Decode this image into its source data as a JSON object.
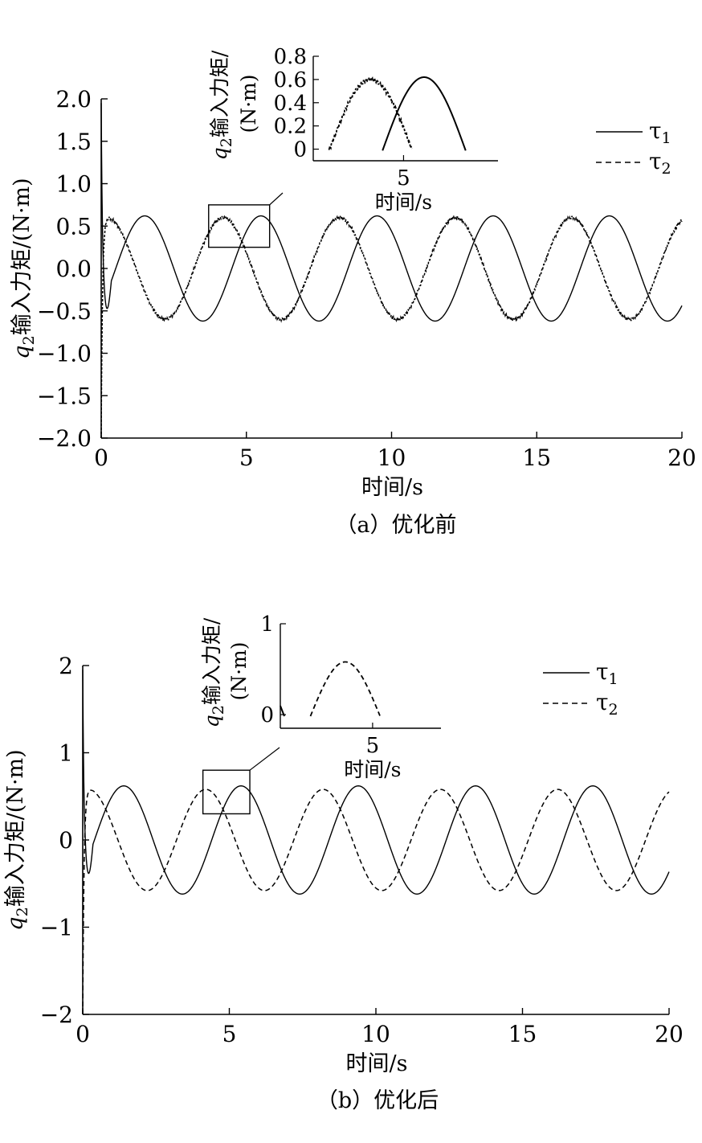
{
  "chart_data": [
    {
      "panel": "a",
      "type": "line",
      "caption": "（a）优化前",
      "xlabel": "时间/s",
      "ylabel": "q2输入力矩/(N·m)",
      "ylabel_var": "q",
      "ylabel_sub": "2",
      "ylabel_rest": "输入力矩/(N·m)",
      "xlim": [
        0,
        20
      ],
      "ylim": [
        -2.0,
        2.0
      ],
      "x_ticks": [
        "0",
        "5",
        "10",
        "15",
        "20"
      ],
      "y_ticks": [
        "2.0",
        "1.5",
        "1.0",
        "0.5",
        "0.0",
        "−0.5",
        "−1.0",
        "−1.5",
        "−2.0"
      ],
      "legend_position": "top-right",
      "series": [
        {
          "name": "τ1",
          "sym": "τ",
          "sub": "1",
          "style": "solid",
          "period_s": 4.0,
          "amplitude": 0.62,
          "peak_first_s": 1.5,
          "initial_spike": 1.95,
          "noisy": false
        },
        {
          "name": "τ2",
          "sym": "τ",
          "sub": "2",
          "style": "dashed",
          "period_s": 4.0,
          "amplitude": 0.6,
          "peak_first_s": 0.2,
          "initial_spike": -2.0,
          "noisy": true
        }
      ],
      "zoom_box": {
        "x": [
          3.7,
          5.8
        ],
        "y": [
          0.25,
          0.75
        ]
      },
      "inset": {
        "xlabel": "时间/s",
        "ylabel_line1": "q2输入力矩/",
        "ylabel_var": "q",
        "ylabel_sub": "2",
        "ylabel_rest": "输入力矩/",
        "ylabel_line2": "(N·m)",
        "xlim": [
          2.8,
          7.3
        ],
        "ylim": [
          -0.1,
          0.8
        ],
        "x_ticks": [
          "5"
        ],
        "y_ticks": [
          "0.8",
          "0.6",
          "0.4",
          "0.2",
          "0"
        ]
      }
    },
    {
      "panel": "b",
      "type": "line",
      "caption": "（b）优化后",
      "xlabel": "时间/s",
      "ylabel": "q2输入力矩/(N·m)",
      "ylabel_var": "q",
      "ylabel_sub": "2",
      "ylabel_rest": "输入力矩/(N·m)",
      "xlim": [
        0,
        20
      ],
      "ylim": [
        -2,
        2
      ],
      "x_ticks": [
        "0",
        "5",
        "10",
        "15",
        "20"
      ],
      "y_ticks": [
        "2",
        "1",
        "0",
        "−1",
        "−2"
      ],
      "legend_position": "top-right",
      "series": [
        {
          "name": "τ1",
          "sym": "τ",
          "sub": "1",
          "style": "solid",
          "period_s": 4.0,
          "amplitude": 0.62,
          "peak_first_s": 1.4,
          "initial_spike": 1.95,
          "noisy": false
        },
        {
          "name": "τ2",
          "sym": "τ",
          "sub": "2",
          "style": "dashed",
          "period_s": 4.0,
          "amplitude": 0.58,
          "peak_first_s": 0.2,
          "initial_spike": -2.0,
          "noisy": false
        }
      ],
      "zoom_box": {
        "x": [
          4.1,
          5.7
        ],
        "y": [
          0.3,
          0.8
        ]
      },
      "inset": {
        "xlabel": "时间/s",
        "ylabel_line1": "q2输入力矩/",
        "ylabel_var": "q",
        "ylabel_sub": "2",
        "ylabel_rest": "输入力矩/",
        "ylabel_line2": "(N·m)",
        "xlim": [
          2.3,
          7.0
        ],
        "ylim": [
          -0.15,
          1.0
        ],
        "x_ticks": [
          "5"
        ],
        "y_ticks": [
          "1",
          "0"
        ]
      }
    }
  ]
}
